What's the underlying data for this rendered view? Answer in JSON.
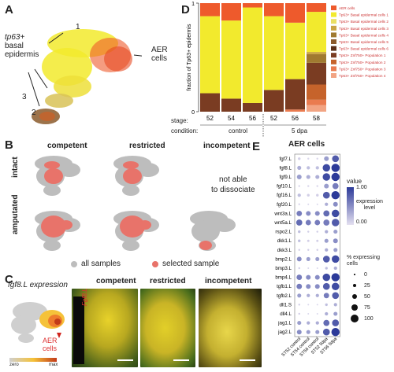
{
  "panels": {
    "A": {
      "label": "A",
      "cluster_1": "1",
      "cluster_2": "2",
      "cluster_3": "3",
      "basal_line1": "tp63+",
      "basal_line2": "basal",
      "basal_line3": "epidermis",
      "aer_line1": "AER",
      "aer_line2": "cells"
    },
    "B": {
      "label": "B",
      "col_competent": "competent",
      "col_restricted": "restricted",
      "col_incompetent": "incompetent",
      "row_intact": "intact",
      "row_amputated": "amputated",
      "na_line1": "not able",
      "na_line2": "to dissociate",
      "legend_all": "all samples",
      "legend_selected": "selected sample"
    },
    "C": {
      "label": "C",
      "title": "fgf8.L expression",
      "aer_line1": "AER",
      "aer_line2": "cells",
      "scale_zero": "zero",
      "scale_max": "max",
      "photo_label": "Fgf8.L",
      "col_competent": "competent",
      "col_restricted": "restricted",
      "col_incompetent": "incompetent"
    },
    "D": {
      "label": "D",
      "stage_label": "stage:",
      "condition_label": "condition:",
      "cond_control": "control",
      "cond_5dpa": "5 dpa"
    },
    "E": {
      "label": "E",
      "title": "AER cells",
      "legend_value_title": "value",
      "legend_value_max": "1.00",
      "legend_value_mid_line1": "expression",
      "legend_value_mid_line2": "level",
      "legend_value_min": "0.00",
      "legend_pct_title_line1": "% expressing",
      "legend_pct_title_line2": "cells",
      "legend_pct_values": [
        "0",
        "25",
        "50",
        "75",
        "100"
      ]
    }
  },
  "chart_data": [
    {
      "type": "bar",
      "stacked": true,
      "ylabel": "fraction of Tp63+ epidermis",
      "ylim": [
        0,
        1
      ],
      "yticks": [
        0,
        1
      ],
      "categories": [
        "52",
        "54",
        "56",
        "52",
        "56",
        "58"
      ],
      "group_labels": [
        "control",
        "control",
        "control",
        "5 dpa",
        "5 dpa",
        "5 dpa"
      ],
      "series": [
        {
          "name": "Tp63+ Znf750+ Population 4",
          "color": "#f2a483",
          "values": [
            0.0,
            0.0,
            0.0,
            0.0,
            0.0,
            0.06
          ]
        },
        {
          "name": "Tp63+ Znf750+ Population 3",
          "color": "#ea7b4f",
          "values": [
            0.0,
            0.0,
            0.0,
            0.0,
            0.02,
            0.05
          ]
        },
        {
          "name": "Tp63+ Znf750+ Population 2",
          "color": "#c6632b",
          "values": [
            0.0,
            0.0,
            0.0,
            0.0,
            0.0,
            0.14
          ]
        },
        {
          "name": "Tp63+ Znf750+ Population 1",
          "color": "#7a3c22",
          "values": [
            0.17,
            0.12,
            0.08,
            0.2,
            0.28,
            0.2
          ]
        },
        {
          "name": "Tp63+ Basal epidermal cells 6",
          "color": "#5a2e17",
          "values": [
            0.0,
            0.0,
            0.0,
            0.0,
            0.0,
            0.0
          ]
        },
        {
          "name": "Tp63+ Basal epidermal cells 5",
          "color": "#8b5a2b",
          "values": [
            0.0,
            0.0,
            0.0,
            0.0,
            0.0,
            0.0
          ]
        },
        {
          "name": "Tp63+ Basal epidermal cells 4",
          "color": "#a07a30",
          "values": [
            0.0,
            0.0,
            0.0,
            0.0,
            0.0,
            0.08
          ]
        },
        {
          "name": "Tp63+ Basal epidermal cells 3",
          "color": "#c9a443",
          "values": [
            0.0,
            0.0,
            0.0,
            0.0,
            0.0,
            0.02
          ]
        },
        {
          "name": "Tp63+ Basal epidermal cells 2",
          "color": "#eadf63",
          "values": [
            0.0,
            0.0,
            0.0,
            0.0,
            0.0,
            0.0
          ]
        },
        {
          "name": "Tp63+ Basal epidermal cells 1",
          "color": "#f2ea2d",
          "values": [
            0.71,
            0.72,
            0.88,
            0.68,
            0.52,
            0.37
          ]
        },
        {
          "name": "AER cells",
          "color": "#ee5a2c",
          "values": [
            0.12,
            0.16,
            0.04,
            0.12,
            0.18,
            0.08
          ]
        }
      ],
      "legend_order": [
        "AER cells",
        "Tp63+ Basal epidermal cells 1",
        "Tp63+ Basal epidermal cells 2",
        "Tp63+ Basal epidermal cells 3",
        "Tp63+ Basal epidermal cells 4",
        "Tp63+ Basal epidermal cells 5",
        "Tp63+ Basal epidermal cells 6",
        "Tp63+ Znf750+ Population 1",
        "Tp63+ Znf750+ Population 2",
        "Tp63+ Znf750+ Population 3",
        "Tp63+ Znf750+ Population 4"
      ],
      "legend_placement": "right"
    },
    {
      "type": "dot",
      "title": "AER cells",
      "genes": [
        "fgf7.L",
        "fgf8.L",
        "fgf9.L",
        "fgf10.L",
        "fgf16.L",
        "fgf20.L",
        "wnt3a.L",
        "wnt5a.L",
        "rspo2.L",
        "dkk1.L",
        "dkk3.L",
        "bmp2.L",
        "bmp3.L",
        "bmp4.L",
        "tgfb1.L",
        "tgfb2.L",
        "dll1.S",
        "dll4.L",
        "jag1.L",
        "jag2.L"
      ],
      "samples": [
        "ST52 control",
        "ST54 control",
        "ST56 control",
        "ST52 5dpa",
        "ST56 5dpa"
      ],
      "value": [
        [
          0.1,
          0.05,
          0.05,
          0.4,
          0.8
        ],
        [
          0.3,
          0.2,
          0.2,
          0.9,
          1.0
        ],
        [
          0.4,
          0.3,
          0.3,
          0.9,
          1.0
        ],
        [
          0.05,
          0.05,
          0.05,
          0.4,
          0.6
        ],
        [
          0.2,
          0.1,
          0.1,
          0.8,
          1.0
        ],
        [
          0.05,
          0.05,
          0.05,
          0.3,
          0.5
        ],
        [
          0.6,
          0.5,
          0.5,
          0.7,
          0.9
        ],
        [
          0.7,
          0.6,
          0.6,
          0.6,
          0.8
        ],
        [
          0.2,
          0.1,
          0.1,
          0.3,
          0.4
        ],
        [
          0.2,
          0.1,
          0.1,
          0.4,
          0.5
        ],
        [
          0.1,
          0.1,
          0.1,
          0.3,
          0.4
        ],
        [
          0.5,
          0.4,
          0.4,
          0.8,
          0.9
        ],
        [
          0.1,
          0.05,
          0.05,
          0.2,
          0.3
        ],
        [
          0.6,
          0.5,
          0.5,
          0.9,
          1.0
        ],
        [
          0.6,
          0.5,
          0.5,
          0.8,
          0.9
        ],
        [
          0.4,
          0.3,
          0.3,
          0.6,
          0.8
        ],
        [
          0.1,
          0.05,
          0.05,
          0.2,
          0.3
        ],
        [
          0.1,
          0.05,
          0.05,
          0.3,
          0.4
        ],
        [
          0.4,
          0.3,
          0.3,
          0.7,
          0.8
        ],
        [
          0.5,
          0.4,
          0.4,
          0.8,
          1.0
        ]
      ],
      "pct": [
        [
          20,
          10,
          10,
          50,
          80
        ],
        [
          40,
          30,
          30,
          90,
          100
        ],
        [
          50,
          40,
          40,
          90,
          100
        ],
        [
          10,
          10,
          10,
          50,
          70
        ],
        [
          30,
          20,
          20,
          80,
          100
        ],
        [
          10,
          5,
          5,
          30,
          50
        ],
        [
          60,
          50,
          50,
          70,
          90
        ],
        [
          70,
          60,
          60,
          70,
          90
        ],
        [
          20,
          10,
          10,
          30,
          40
        ],
        [
          20,
          15,
          15,
          40,
          50
        ],
        [
          10,
          10,
          10,
          30,
          40
        ],
        [
          50,
          40,
          40,
          80,
          90
        ],
        [
          10,
          5,
          5,
          20,
          30
        ],
        [
          60,
          50,
          50,
          90,
          100
        ],
        [
          60,
          50,
          50,
          80,
          90
        ],
        [
          40,
          30,
          30,
          60,
          80
        ],
        [
          10,
          5,
          5,
          20,
          30
        ],
        [
          10,
          5,
          5,
          30,
          40
        ],
        [
          40,
          30,
          30,
          70,
          80
        ],
        [
          50,
          40,
          40,
          80,
          100
        ]
      ],
      "color_low": "#e4e0f0",
      "color_high": "#2c3a99",
      "value_range": [
        0,
        1
      ],
      "pct_range": [
        0,
        100
      ]
    }
  ],
  "colors": {
    "aer": "#ee5a2c",
    "basal_yellow": "#f2ea2d",
    "selected_sample": "#e8736a",
    "all_samples": "#bdbdbd"
  }
}
